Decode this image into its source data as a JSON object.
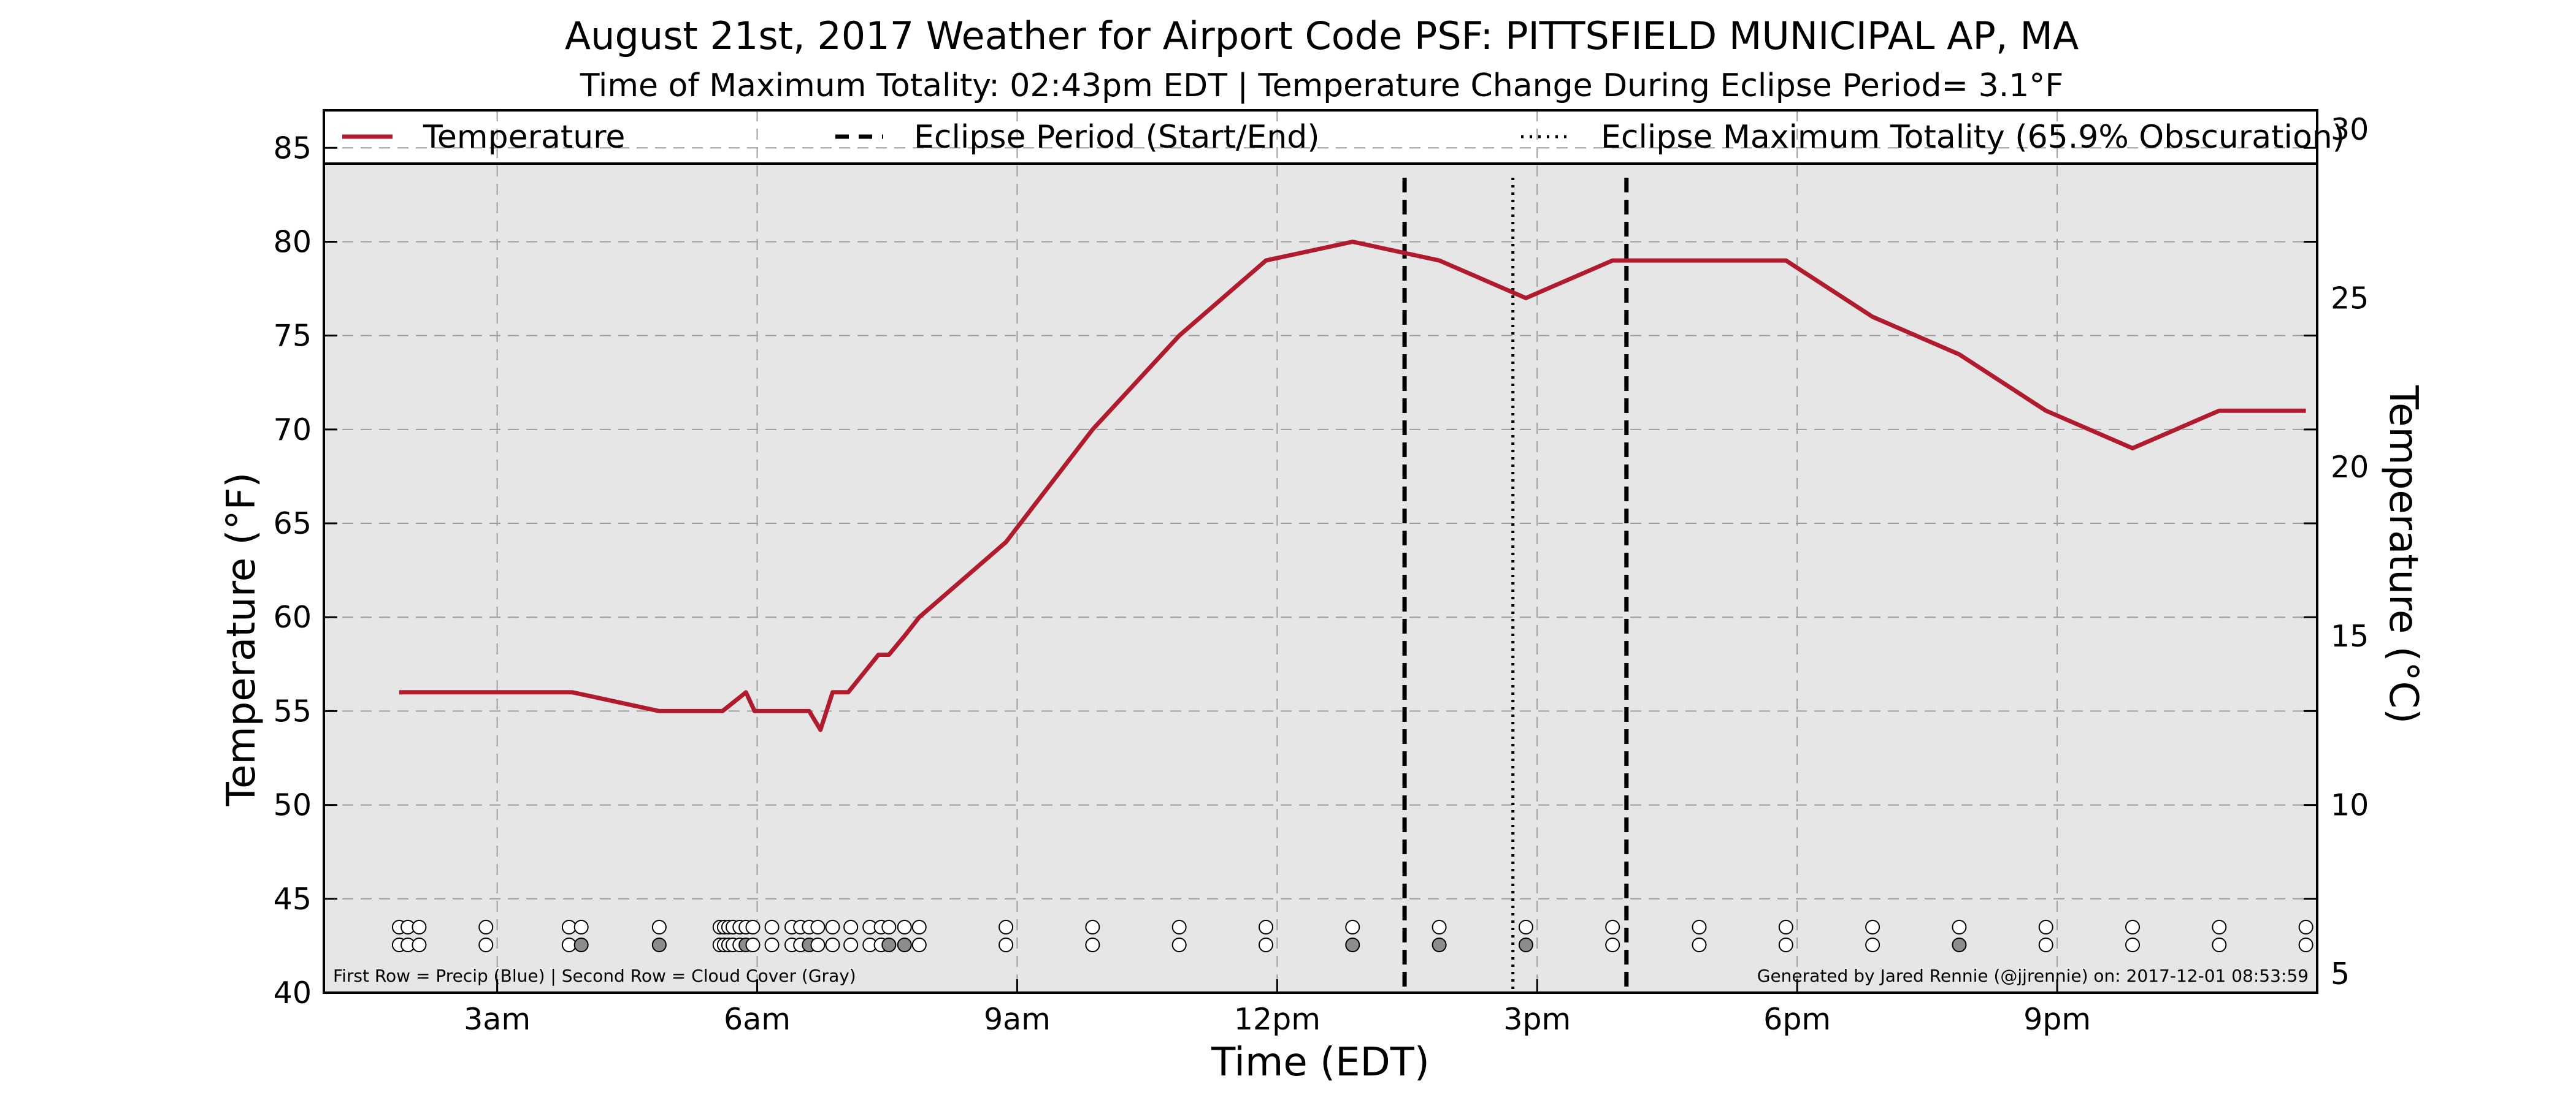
{
  "title": "August 21st, 2017 Weather for Airport Code PSF: PITTSFIELD MUNICIPAL AP, MA",
  "subtitle": "Time of Maximum Totality: 02:43pm EDT | Temperature Change During Eclipse Period= 3.1°F",
  "footer_left": "First Row = Precip (Blue) | Second Row = Cloud Cover (Gray)",
  "footer_right": "Generated by Jared Rennie (@jjrennie) on: 2017-12-01 08:53:59",
  "colors": {
    "temperature": "#b01c2e",
    "plot_bg": "#e6e6e6",
    "grid": "#9e9e9e",
    "overcast_marker": "#8c8c8c"
  },
  "chart_data": {
    "type": "line",
    "xlabel": "Time (EDT)",
    "ylabel": "Temperature (°F)",
    "ylabel_right": "Temperature (°C)",
    "xlim": [
      1,
      24
    ],
    "ylim": [
      40,
      87
    ],
    "ylim_right_celsius": [
      4.44,
      30.56
    ],
    "x_ticks": [
      {
        "x": 3,
        "label": "3am"
      },
      {
        "x": 6,
        "label": "6am"
      },
      {
        "x": 9,
        "label": "9am"
      },
      {
        "x": 12,
        "label": "12pm"
      },
      {
        "x": 15,
        "label": "3pm"
      },
      {
        "x": 18,
        "label": "6pm"
      },
      {
        "x": 21,
        "label": "9pm"
      }
    ],
    "y_ticks": [
      40,
      45,
      50,
      55,
      60,
      65,
      70,
      75,
      80,
      85
    ],
    "y_ticks_right": [
      5,
      10,
      15,
      20,
      25,
      30
    ],
    "grid": true,
    "legend_position": "top",
    "legend": [
      {
        "label": "Temperature",
        "style": "solid"
      },
      {
        "label": "Eclipse Period (Start/End)",
        "style": "dashed"
      },
      {
        "label": "Eclipse Maximum Totality (65.9% Obscuration)",
        "style": "dotted"
      }
    ],
    "series": [
      {
        "name": "Temperature",
        "x": [
          1.87,
          3.0,
          3.87,
          4.87,
          5.6,
          5.87,
          5.97,
          6.6,
          6.73,
          6.87,
          7.05,
          7.4,
          7.52,
          7.7,
          7.87,
          8.87,
          9.87,
          10.87,
          11.87,
          12.87,
          13.87,
          14.87,
          15.87,
          16.87,
          17.87,
          18.87,
          19.87,
          20.87,
          21.87,
          22.87,
          23.87
        ],
        "y": [
          56,
          56,
          56,
          55,
          55,
          56,
          55,
          55,
          54,
          56,
          56,
          58,
          58,
          59,
          60,
          64,
          70,
          75,
          79,
          80,
          79,
          77,
          79,
          79,
          79,
          76,
          74,
          71,
          69,
          71,
          71
        ]
      }
    ],
    "eclipse_period": [
      13.47,
      16.03
    ],
    "eclipse_max_totality": 14.72,
    "obs_markers": {
      "rows": [
        "Precip (Blue)",
        "Cloud Cover (Gray)"
      ],
      "times": [
        1.87,
        1.97,
        2.1,
        2.87,
        3.83,
        3.97,
        4.87,
        5.57,
        5.62,
        5.67,
        5.72,
        5.8,
        5.87,
        5.95,
        6.17,
        6.4,
        6.5,
        6.6,
        6.7,
        6.87,
        7.08,
        7.3,
        7.43,
        7.52,
        7.7,
        7.87,
        8.87,
        9.87,
        10.87,
        11.87,
        12.87,
        13.87,
        14.87,
        15.87,
        16.87,
        17.87,
        18.87,
        19.87,
        20.87,
        21.87,
        22.87,
        23.87
      ],
      "overcast_times": [
        3.97,
        4.87,
        5.87,
        6.6,
        7.52,
        7.7,
        12.87,
        13.87,
        14.87,
        19.87
      ]
    }
  }
}
